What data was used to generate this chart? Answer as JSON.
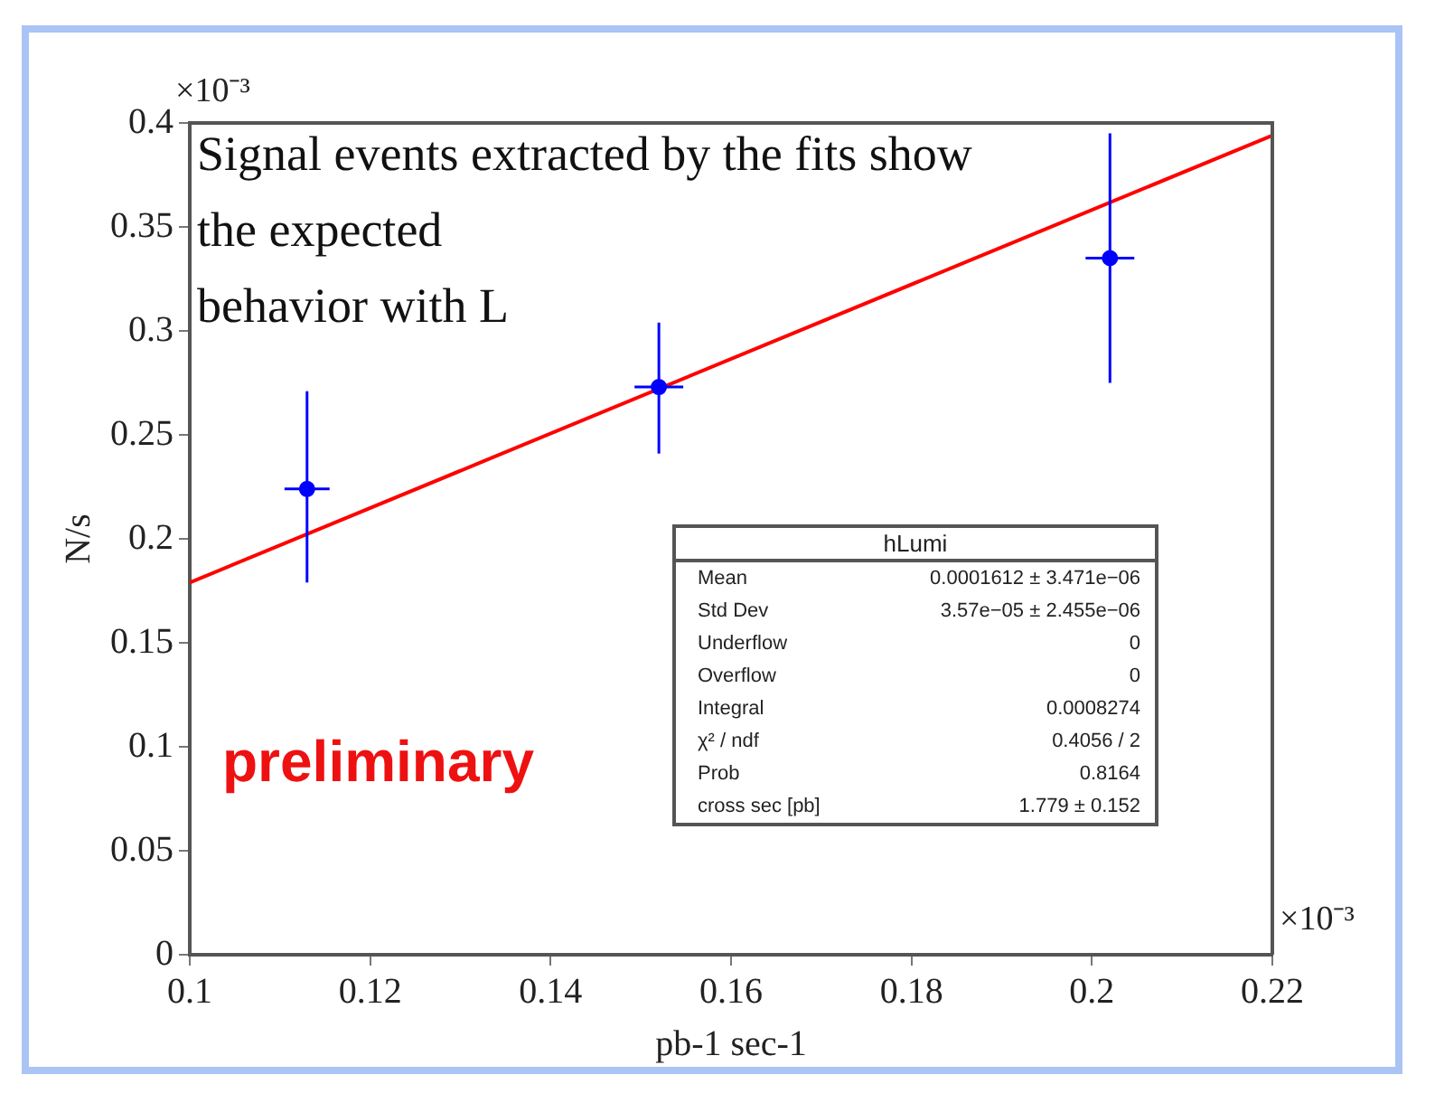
{
  "chart_data": {
    "type": "scatter",
    "xlabel": "pb-1 sec-1",
    "ylabel": "N/s",
    "xlim": [
      0.1,
      0.22
    ],
    "xticks": [
      0.1,
      0.12,
      0.14,
      0.16,
      0.18,
      0.2,
      0.22
    ],
    "ylim": [
      0,
      0.4
    ],
    "yticks": [
      0,
      0.05,
      0.1,
      0.15,
      0.2,
      0.25,
      0.3,
      0.35,
      0.4
    ],
    "grid": false,
    "legend": false,
    "series": [
      {
        "marker": "circle",
        "color": "#0000ff",
        "x": [
          0.113,
          0.152,
          0.202
        ],
        "values": [
          0.224,
          0.273,
          0.335
        ],
        "errors": [
          [
            0.179,
            0.271
          ],
          [
            0.241,
            0.304
          ],
          [
            0.275,
            0.395
          ]
        ],
        "xerrors": [
          0.0025,
          0.0027,
          0.0027
        ]
      },
      {
        "type": "line",
        "color": "#ff0000",
        "x": [
          0.1,
          0.22
        ],
        "values": [
          0.179,
          0.394
        ],
        "line_style": "solid",
        "marker": "none"
      }
    ],
    "annotations": [
      "Signal events extracted by the fits show\nthe expected\nbehavior with L",
      "preliminary",
      "×10⁻³",
      "×10⁻³",
      "hLumi",
      "Mean",
      "0.0001612 ± 3.471e−06",
      "Std Dev",
      "3.57e−05 ± 2.455e−06",
      "Underflow",
      "0",
      "Overflow",
      "0",
      "Integral",
      "0.0008274",
      "χ² / ndf",
      "0.4056 / 2",
      "Prob",
      "0.8164",
      "cross sec [pb]",
      "1.779 ± 0.152"
    ]
  }
}
